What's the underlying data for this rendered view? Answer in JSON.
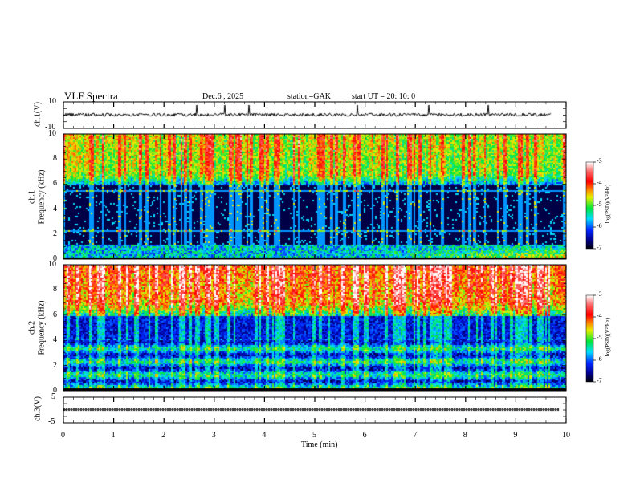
{
  "header": {
    "title": "VLF  Spectra",
    "date": "Dec.6  , 2025",
    "station": "station=GAK",
    "start": "start  UT =   20: 10: 0"
  },
  "colors": {
    "axis": "#000000",
    "trace": "#000000"
  },
  "chart_data": [
    {
      "type": "line",
      "name": "ch1 waveform",
      "ylabel": "ch.1(V)",
      "ylim": [
        -10,
        10
      ],
      "yticks": [
        "10",
        "-10"
      ],
      "xlim": [
        0,
        10
      ]
    },
    {
      "type": "heatmap",
      "name": "ch1 spectrogram",
      "ylabel_top": "ch.1",
      "ylabel": "Frequency  (kHz)",
      "ylim": [
        0,
        10
      ],
      "yticks": [
        "0",
        "2",
        "4",
        "6",
        "8",
        "10"
      ],
      "xlim": [
        0,
        10
      ],
      "colorbar": {
        "label": "log(PSD)(V²/Hz)",
        "range": [
          -7,
          -3
        ],
        "ticks": [
          "-3",
          "-4",
          "-5",
          "-6",
          "-7"
        ]
      },
      "profile": {
        "high_band_kHz": [
          6,
          10
        ],
        "high_level": -4.8,
        "low_band_level": -6.8,
        "low_freq_enhancement_after_min": 6
      }
    },
    {
      "type": "heatmap",
      "name": "ch2 spectrogram",
      "ylabel_top": "ch.2",
      "ylabel": "Frequency  (kHz)",
      "ylim": [
        0,
        10
      ],
      "yticks": [
        "0",
        "2",
        "4",
        "6",
        "8",
        "10"
      ],
      "xlim": [
        0,
        10
      ],
      "colorbar": {
        "label": "log(PSD)(V²/Hz)",
        "range": [
          -7,
          -3
        ],
        "ticks": [
          "-3",
          "-4",
          "-5",
          "-6",
          "-7"
        ]
      },
      "profile": {
        "high_band_kHz": [
          6,
          10
        ],
        "high_level": -4.3,
        "mid_band_level": -6.3,
        "low_band_level": -5.8
      }
    },
    {
      "type": "line",
      "name": "ch3 waveform",
      "ylabel": "ch.3(V)",
      "ylim": [
        -5,
        5
      ],
      "yticks": [
        "5",
        "-5"
      ],
      "xlim": [
        0,
        10
      ]
    }
  ],
  "xaxis": {
    "label": "Time  (min)",
    "ticks": [
      "0",
      "1",
      "2",
      "3",
      "4",
      "5",
      "6",
      "7",
      "8",
      "9",
      "10"
    ]
  }
}
